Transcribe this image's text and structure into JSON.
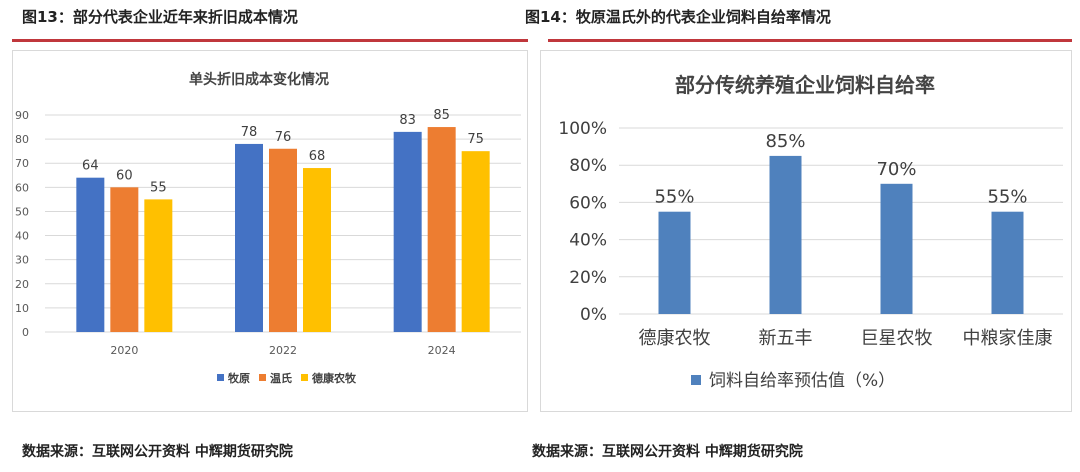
{
  "left_caption": "图13：部分代表企业近年来折旧成本情况",
  "right_caption": "图14：牧原温氏外的代表企业饲料自给率情况",
  "source_text": "数据来源：互联网公开资料 中辉期货研究院",
  "colors": {
    "rule": "#c0373c",
    "muyuan": "#4472c4",
    "wens": "#ed7d31",
    "dekang": "#ffc000",
    "feed_bar": "#4f81bd",
    "gridline": "#d9d9d9"
  },
  "chart_data": [
    {
      "type": "bar",
      "title": "单头折旧成本变化情况",
      "categories": [
        "2020",
        "2022",
        "2024"
      ],
      "series": [
        {
          "name": "牧原",
          "values": [
            64,
            78,
            83
          ]
        },
        {
          "name": "温氏",
          "values": [
            60,
            76,
            85
          ]
        },
        {
          "name": "德康农牧",
          "values": [
            55,
            68,
            75
          ]
        }
      ],
      "yticks": [
        "0",
        "10",
        "20",
        "30",
        "40",
        "50",
        "60",
        "70",
        "80",
        "90"
      ],
      "ylim": [
        0,
        90
      ],
      "grid": true,
      "legend": "bottom",
      "data_labels": true
    },
    {
      "type": "bar",
      "title": "部分传统养殖企业饲料自给率",
      "categories": [
        "德康农牧",
        "新五丰",
        "巨星农牧",
        "中粮家佳康"
      ],
      "series": [
        {
          "name": "饲料自给率预估值（%）",
          "values": [
            55,
            85,
            70,
            55
          ]
        }
      ],
      "value_labels": [
        "55%",
        "85%",
        "70%",
        "55%"
      ],
      "yticks": [
        "0%",
        "20%",
        "40%",
        "60%",
        "80%",
        "100%"
      ],
      "ylim": [
        0,
        100
      ],
      "grid": true,
      "legend": "bottom",
      "data_labels": true
    }
  ]
}
